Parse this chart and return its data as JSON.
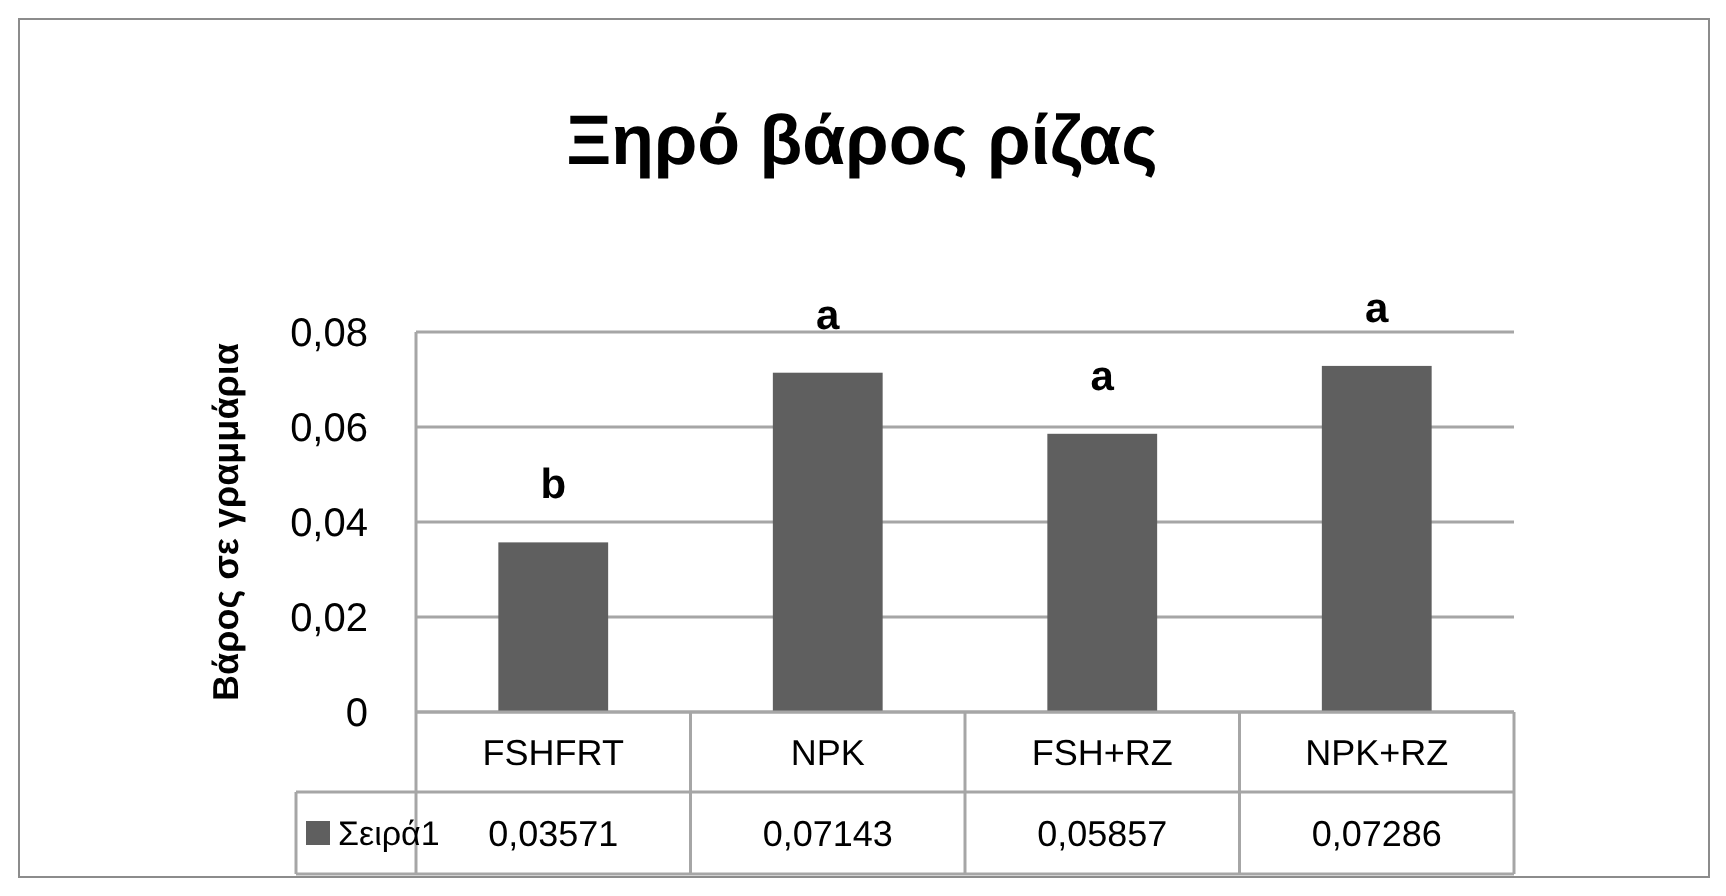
{
  "chart_data": {
    "type": "bar",
    "title": "Ξηρό βάρος ρίζας",
    "ylabel": "Βάρος σε γραμμάρια",
    "categories": [
      "FSHFRT",
      "NPK",
      "FSH+RZ",
      "NPK+RZ"
    ],
    "series": [
      {
        "name": "Σειρά1",
        "color": "#5f5f5f",
        "values": [
          0.03571,
          0.07143,
          0.05857,
          0.07286
        ],
        "value_labels": [
          "0,03571",
          "0,07143",
          "0,05857",
          "0,07286"
        ]
      }
    ],
    "ylim": [
      0,
      0.08
    ],
    "yticks": [
      0,
      {
        "value": 0.02,
        "label": "0,02"
      },
      {
        "value": 0.04,
        "label": "0,04"
      },
      {
        "value": 0.06,
        "label": "0,06"
      },
      {
        "value": 0.08,
        "label": "0,08"
      }
    ],
    "grid": "y",
    "legend": "bottom",
    "annotations": [
      {
        "text": "b",
        "x": "FSHFRT",
        "y": 0.03571
      },
      {
        "text": "a",
        "x": "NPK",
        "y": 0.07143
      },
      {
        "text": "a",
        "x": "FSH+RZ",
        "y": 0.05857
      },
      {
        "text": "a",
        "x": "NPK+RZ",
        "y": 0.07286
      }
    ]
  }
}
